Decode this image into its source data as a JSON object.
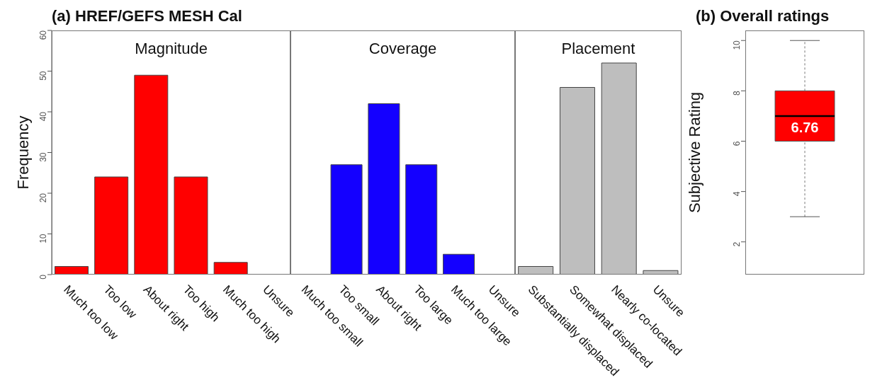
{
  "chart_data": [
    {
      "type": "bar",
      "title": "(a) HREF/GEFS MESH Cal",
      "subtitle": "Magnitude",
      "ylabel": "Frequency",
      "categories": [
        "Much too low",
        "Too low",
        "About right",
        "Too high",
        "Much too high",
        "Unsure"
      ],
      "values": [
        2,
        24,
        49,
        24,
        3,
        0
      ],
      "color": "#ff0000",
      "ylim": [
        0,
        60
      ],
      "yticks": [
        0,
        10,
        20,
        30,
        40,
        50,
        60
      ]
    },
    {
      "type": "bar",
      "subtitle": "Coverage",
      "categories": [
        "Much too small",
        "Too small",
        "About right",
        "Too large",
        "Much too large",
        "Unsure"
      ],
      "values": [
        0,
        27,
        42,
        27,
        5,
        0
      ],
      "color": "#1400ff",
      "ylim": [
        0,
        60
      ],
      "yticks": [
        0,
        10,
        20,
        30,
        40,
        50,
        60
      ],
      "tick_labels": "x"
    },
    {
      "type": "bar",
      "subtitle": "Placement",
      "categories": [
        "Substantially displaced",
        "Somewhat displaced",
        "Nearly co-located",
        "Unsure"
      ],
      "values": [
        2,
        46,
        52,
        1
      ],
      "color": "#bebebe",
      "ylim": [
        0,
        60
      ],
      "yticks": [
        0,
        10,
        20,
        30,
        40,
        50,
        60
      ],
      "tick_labels": "x"
    },
    {
      "type": "box",
      "title": "(b) Overall ratings",
      "ylabel": "Subjective Rating",
      "categories": [
        null
      ],
      "boxes": [
        {
          "low": 3,
          "q1": 6,
          "median": 7,
          "q3": 8,
          "high": 10
        }
      ],
      "annotations": [
        "6.76"
      ],
      "color": "#ff0000",
      "ylim": [
        0.7,
        10.4
      ],
      "yticks": [
        2,
        4,
        6,
        8,
        10
      ],
      "tick_labels": "y"
    }
  ]
}
